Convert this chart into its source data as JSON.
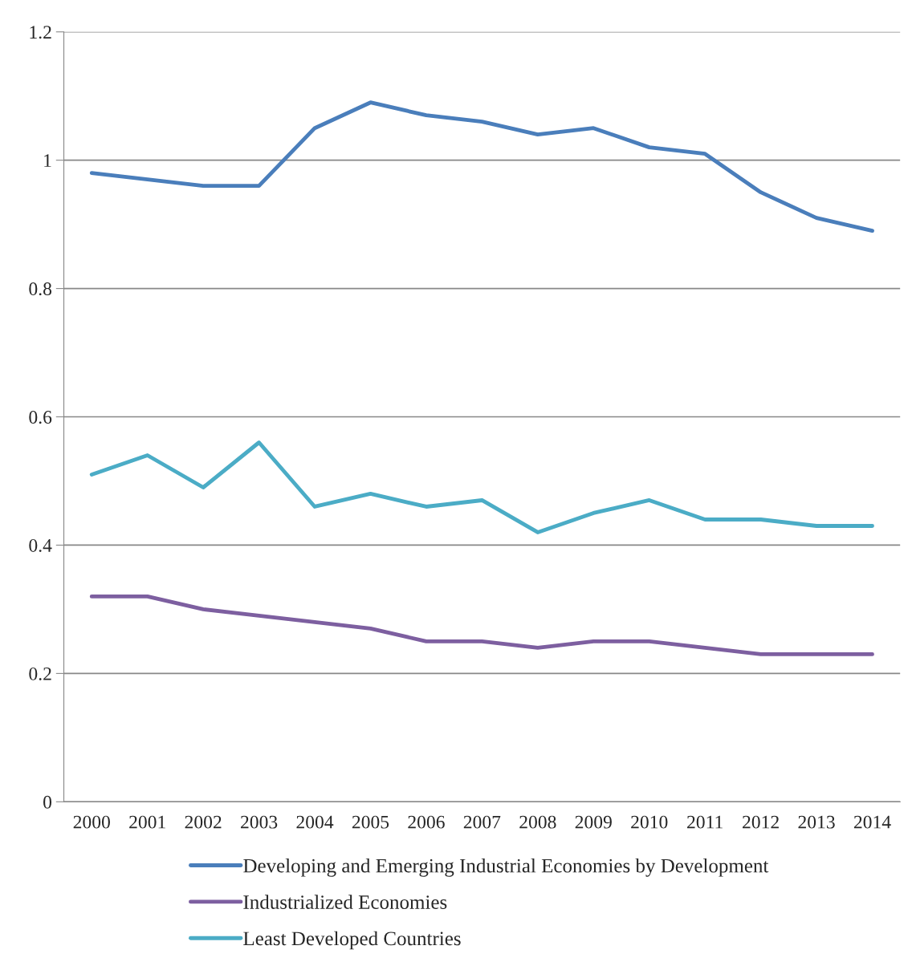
{
  "chart_data": {
    "type": "line",
    "categories": [
      "2000",
      "2001",
      "2002",
      "2003",
      "2004",
      "2005",
      "2006",
      "2007",
      "2008",
      "2009",
      "2010",
      "2011",
      "2012",
      "2013",
      "2014"
    ],
    "series": [
      {
        "name": "Developing and Emerging Industrial Economies by Development",
        "color": "#4a7ebb",
        "values": [
          0.98,
          0.97,
          0.96,
          0.96,
          1.05,
          1.09,
          1.07,
          1.06,
          1.04,
          1.05,
          1.02,
          1.01,
          0.95,
          0.91,
          0.89
        ]
      },
      {
        "name": "Industrialized Economies",
        "color": "#7d5fa0",
        "values": [
          0.32,
          0.32,
          0.3,
          0.29,
          0.28,
          0.27,
          0.25,
          0.25,
          0.24,
          0.25,
          0.25,
          0.24,
          0.23,
          0.23,
          0.23
        ]
      },
      {
        "name": "Least Developed Countries",
        "color": "#4bacc6",
        "values": [
          0.51,
          0.54,
          0.49,
          0.56,
          0.46,
          0.48,
          0.46,
          0.47,
          0.42,
          0.45,
          0.47,
          0.44,
          0.44,
          0.43,
          0.43
        ]
      }
    ],
    "ylim": [
      0,
      1.2
    ],
    "yticks": [
      0,
      0.2,
      0.4,
      0.6,
      0.8,
      1,
      1.2
    ],
    "grid": "y",
    "legend": "bottom",
    "marker": "none",
    "line_style": "solid"
  }
}
